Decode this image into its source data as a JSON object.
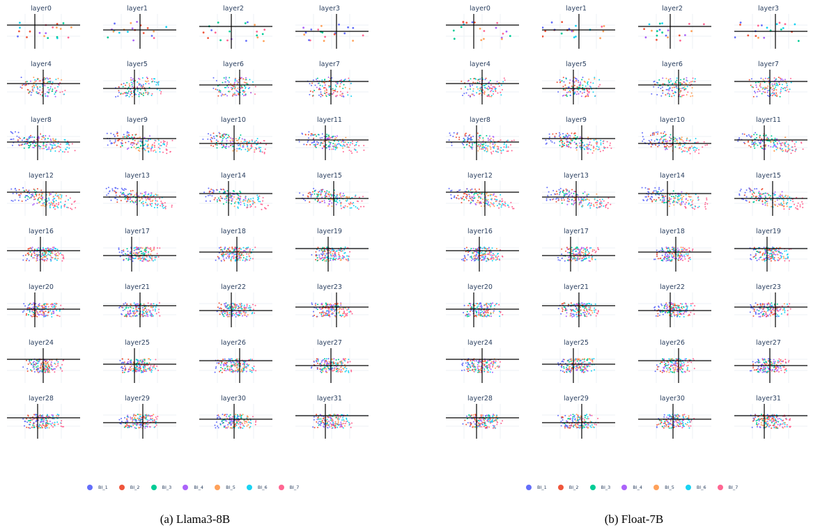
{
  "colors": {
    "BI_1": "#636efa",
    "BI_2": "#ef553b",
    "BI_3": "#00cc96",
    "BI_4": "#ab63fa",
    "BI_5": "#ffa15a",
    "BI_6": "#19d3f3",
    "BI_7": "#ff6692"
  },
  "legend": [
    "BI_1",
    "BI_2",
    "BI_3",
    "BI_4",
    "BI_5",
    "BI_6",
    "BI_7"
  ],
  "figures": [
    {
      "caption": "(a) Llama3-8B"
    },
    {
      "caption": "(b) Float-7B"
    }
  ],
  "chart_data": [
    {
      "type": "scatter",
      "title": "(a) Llama3-8B",
      "subplot_titles": [
        "layer0",
        "layer1",
        "layer2",
        "layer3",
        "layer4",
        "layer5",
        "layer6",
        "layer7",
        "layer8",
        "layer9",
        "layer10",
        "layer11",
        "layer12",
        "layer13",
        "layer14",
        "layer15",
        "layer16",
        "layer17",
        "layer18",
        "layer19",
        "layer20",
        "layer21",
        "layer22",
        "layer23",
        "layer24",
        "layer25",
        "layer26",
        "layer27",
        "layer28",
        "layer29",
        "layer30",
        "layer31"
      ],
      "grid": {
        "rows": 8,
        "cols": 4
      },
      "legend": [
        "BI_1",
        "BI_2",
        "BI_3",
        "BI_4",
        "BI_5",
        "BI_6",
        "BI_7"
      ],
      "legend_position": "bottom",
      "axes_shown": "zero lines only, no tick labels"
    },
    {
      "type": "scatter",
      "title": "(b) Float-7B",
      "subplot_titles": [
        "layer0",
        "layer1",
        "layer2",
        "layer3",
        "layer4",
        "layer5",
        "layer6",
        "layer7",
        "layer8",
        "layer9",
        "layer10",
        "layer11",
        "layer12",
        "layer13",
        "layer14",
        "layer15",
        "layer16",
        "layer17",
        "layer18",
        "layer19",
        "layer20",
        "layer21",
        "layer22",
        "layer23",
        "layer24",
        "layer25",
        "layer26",
        "layer27",
        "layer28",
        "layer29",
        "layer30",
        "layer31"
      ],
      "grid": {
        "rows": 8,
        "cols": 4
      },
      "legend": [
        "BI_1",
        "BI_2",
        "BI_3",
        "BI_4",
        "BI_5",
        "BI_6",
        "BI_7"
      ],
      "legend_position": "bottom",
      "axes_shown": "zero lines only, no tick labels"
    }
  ]
}
